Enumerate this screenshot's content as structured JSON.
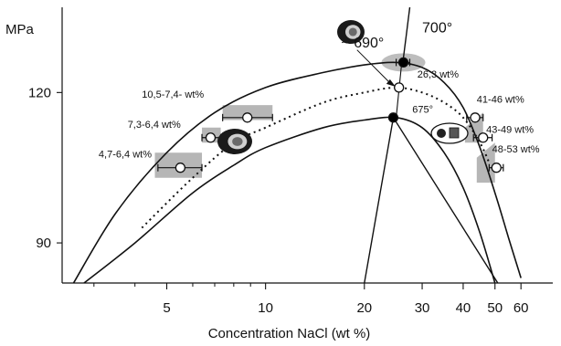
{
  "chart_data": {
    "type": "line",
    "xlabel": "Concentration  NaCl (wt %)",
    "ylabel": "MPa",
    "x_scale": "log",
    "xlim": [
      2.4,
      75
    ],
    "ylim": [
      82,
      137
    ],
    "x_ticks": [
      5,
      10,
      20,
      30,
      40,
      50,
      60
    ],
    "y_ticks": [
      90,
      120
    ],
    "grid": false,
    "legend": "none",
    "series": [
      {
        "style": "solid-outer",
        "points": [
          [
            2.6,
            82
          ],
          [
            3.5,
            96
          ],
          [
            5,
            108
          ],
          [
            7,
            116
          ],
          [
            10,
            121
          ],
          [
            15,
            124
          ],
          [
            20,
            125.5
          ],
          [
            25,
            126
          ],
          [
            30,
            125
          ],
          [
            35,
            122
          ],
          [
            40,
            117
          ],
          [
            45,
            109
          ],
          [
            50,
            100
          ],
          [
            55,
            91
          ],
          [
            60,
            83
          ]
        ]
      },
      {
        "style": "dotted",
        "points": [
          [
            4.2,
            93
          ],
          [
            6,
            103
          ],
          [
            8,
            110
          ],
          [
            10,
            113
          ],
          [
            15,
            118
          ],
          [
            20,
            120
          ],
          [
            25,
            121
          ],
          [
            30,
            120
          ],
          [
            35,
            118
          ],
          [
            40,
            115
          ],
          [
            45,
            110
          ],
          [
            48,
            106
          ]
        ]
      },
      {
        "style": "solid-inner",
        "points": [
          [
            2.8,
            82
          ],
          [
            4,
            90
          ],
          [
            6,
            100
          ],
          [
            8,
            105.5
          ],
          [
            10,
            109
          ],
          [
            15,
            113
          ],
          [
            20,
            114.5
          ],
          [
            25,
            115
          ],
          [
            30,
            113
          ],
          [
            35,
            108
          ],
          [
            40,
            101
          ],
          [
            45,
            92
          ],
          [
            50,
            82
          ]
        ]
      },
      {
        "style": "isotherm-700",
        "points": [
          [
            27.5,
            137
          ],
          [
            26.2,
            126
          ]
        ]
      },
      {
        "style": "isotherm-690",
        "points": [
          [
            26,
            126
          ],
          [
            25,
            115
          ]
        ]
      },
      {
        "style": "isotherm-675",
        "points": [
          [
            20,
            82
          ],
          [
            24.5,
            115
          ],
          [
            51,
            82
          ]
        ]
      }
    ],
    "points": [
      {
        "x": 26.3,
        "y": 126,
        "fill": "#000000",
        "error": [
          25,
          27.5
        ]
      },
      {
        "x": 25.5,
        "y": 121,
        "fill": "#ffffff",
        "error": null
      },
      {
        "x": 24.5,
        "y": 115,
        "fill": "#000000",
        "error": null
      },
      {
        "x": 8.8,
        "y": 115,
        "fill": "#ffffff",
        "error": [
          7.4,
          10.5
        ]
      },
      {
        "x": 6.8,
        "y": 111,
        "fill": "#ffffff",
        "error": [
          6.4,
          7.3
        ]
      },
      {
        "x": 5.5,
        "y": 105,
        "fill": "#ffffff",
        "error": [
          4.7,
          6.4
        ]
      },
      {
        "x": 43.5,
        "y": 115,
        "fill": "#ffffff",
        "error": [
          41,
          46
        ]
      },
      {
        "x": 46,
        "y": 111,
        "fill": "#ffffff",
        "error": [
          43,
          49
        ]
      },
      {
        "x": 50.5,
        "y": 105,
        "fill": "#ffffff",
        "error": [
          48,
          53
        ]
      }
    ],
    "annotations": [
      {
        "text": "700°",
        "x": 30,
        "y": 132
      },
      {
        "text": "~ 690°",
        "x": 17,
        "y": 129
      },
      {
        "text": "675°",
        "x": 28,
        "y": 116
      },
      {
        "text": "26,3 wt%",
        "x": 29,
        "y": 123
      },
      {
        "text": "10,5-7,4-  wt%",
        "x": 4.2,
        "y": 119
      },
      {
        "text": "7,3-6,4 wt%",
        "x": 3.8,
        "y": 113
      },
      {
        "text": "4,7-6,4 wt%",
        "x": 3.1,
        "y": 107
      },
      {
        "text": "41-46 wt%",
        "x": 44,
        "y": 118
      },
      {
        "text": "43-49  wt%",
        "x": 47,
        "y": 112
      },
      {
        "text": "48-53 wt%",
        "x": 49,
        "y": 108
      }
    ]
  }
}
